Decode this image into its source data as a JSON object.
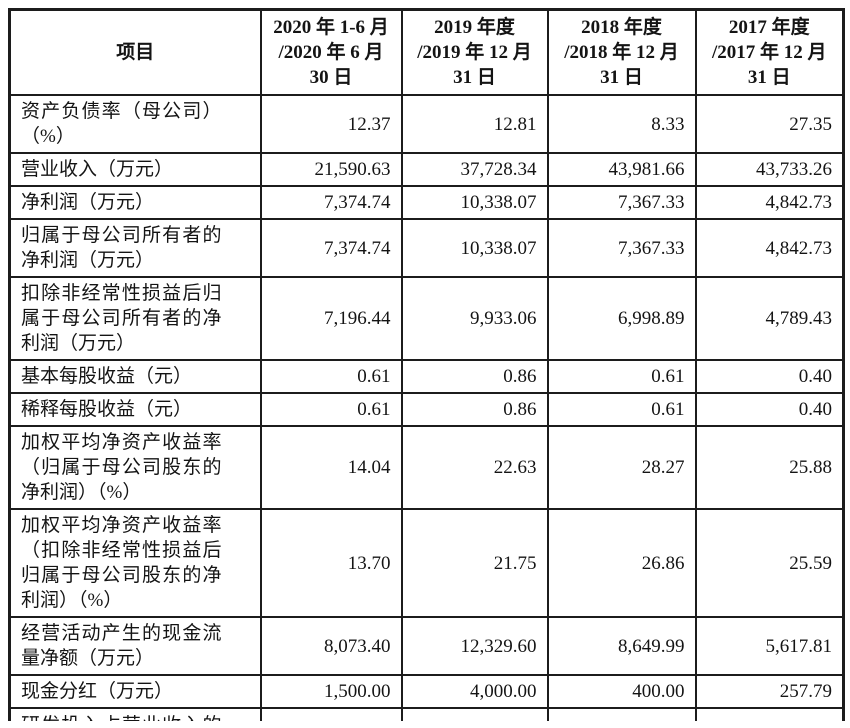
{
  "colors": {
    "background": "#ffffff",
    "text": "#141414",
    "border": "#1c1c1c"
  },
  "table": {
    "columns": [
      "项目",
      "2020 年 1-6 月\n/2020 年 6 月\n30 日",
      "2019 年度\n/2019 年 12 月\n31 日",
      "2018 年度\n/2018 年 12 月\n31 日",
      "2017 年度\n/2017 年 12 月\n31 日"
    ],
    "rows": [
      {
        "label": "资产负债率（母公司）（%）",
        "values": [
          "12.37",
          "12.81",
          "8.33",
          "27.35"
        ]
      },
      {
        "label": "营业收入（万元）",
        "values": [
          "21,590.63",
          "37,728.34",
          "43,981.66",
          "43,733.26"
        ]
      },
      {
        "label": "净利润（万元）",
        "values": [
          "7,374.74",
          "10,338.07",
          "7,367.33",
          "4,842.73"
        ]
      },
      {
        "label": "归属于母公司所有者的净利润（万元）",
        "values": [
          "7,374.74",
          "10,338.07",
          "7,367.33",
          "4,842.73"
        ]
      },
      {
        "label": "扣除非经常性损益后归属于母公司所有者的净利润（万元）",
        "values": [
          "7,196.44",
          "9,933.06",
          "6,998.89",
          "4,789.43"
        ]
      },
      {
        "label": "基本每股收益（元）",
        "values": [
          "0.61",
          "0.86",
          "0.61",
          "0.40"
        ]
      },
      {
        "label": "稀释每股收益（元）",
        "values": [
          "0.61",
          "0.86",
          "0.61",
          "0.40"
        ]
      },
      {
        "label": "加权平均净资产收益率（归属于母公司股东的净利润）（%）",
        "values": [
          "14.04",
          "22.63",
          "28.27",
          "25.88"
        ]
      },
      {
        "label": "加权平均净资产收益率（扣除非经常性损益后归属于母公司股东的净利润）（%）",
        "values": [
          "13.70",
          "21.75",
          "26.86",
          "25.59"
        ]
      },
      {
        "label": "经营活动产生的现金流量净额（万元）",
        "values": [
          "8,073.40",
          "12,329.60",
          "8,649.99",
          "5,617.81"
        ]
      },
      {
        "label": "现金分红（万元）",
        "values": [
          "1,500.00",
          "4,000.00",
          "400.00",
          "257.79"
        ]
      }
    ],
    "partial_row": {
      "label": "研发投入占营业收入的比例（%）"
    }
  }
}
